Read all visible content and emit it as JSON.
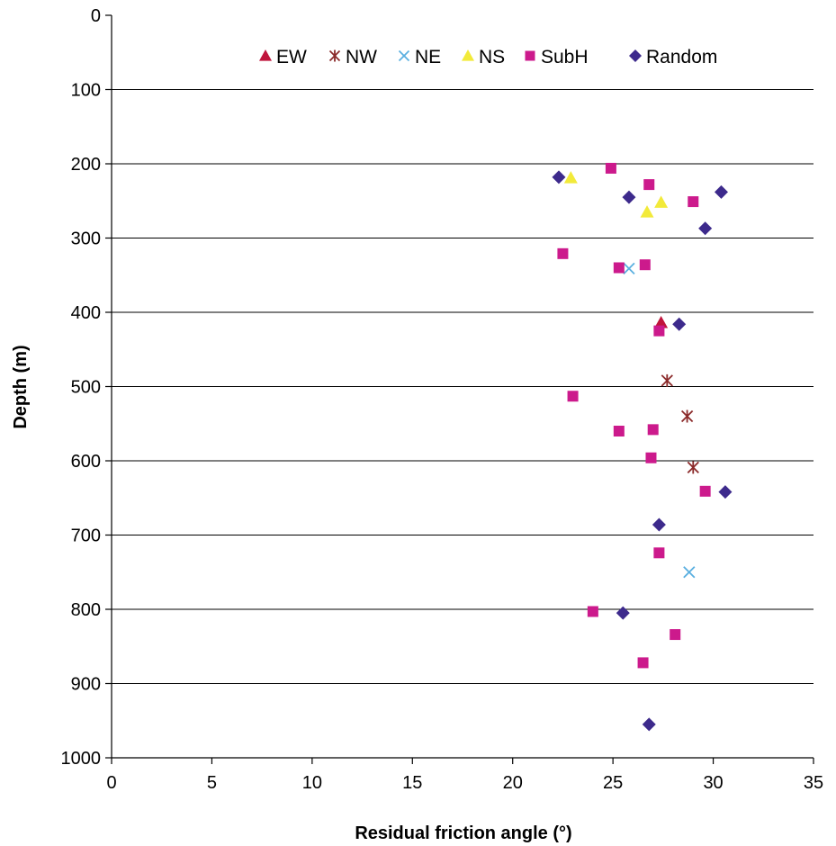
{
  "chart_data": {
    "type": "scatter",
    "title": "",
    "xlabel": "Residual friction angle (°)",
    "ylabel": "Depth (m)",
    "xlim": [
      0,
      35
    ],
    "ylim": [
      0,
      1000
    ],
    "y_inverted": true,
    "x_ticks": [
      0,
      5,
      10,
      15,
      20,
      25,
      30,
      35
    ],
    "y_ticks": [
      0,
      100,
      200,
      300,
      400,
      500,
      600,
      700,
      800,
      900,
      1000
    ],
    "grid": "horizontal",
    "legend_position": "top",
    "series": [
      {
        "name": "EW",
        "marker": "triangle",
        "color": "#C0143C",
        "points": [
          [
            27.4,
            414
          ]
        ]
      },
      {
        "name": "NW",
        "marker": "asterisk",
        "color": "#8B2A2A",
        "points": [
          [
            27.7,
            492
          ],
          [
            28.7,
            540
          ],
          [
            29.0,
            609
          ]
        ]
      },
      {
        "name": "NE",
        "marker": "x",
        "color": "#5AAFE0",
        "points": [
          [
            25.8,
            341
          ],
          [
            28.8,
            750
          ]
        ]
      },
      {
        "name": "NS",
        "marker": "triangle",
        "color": "#F2EA3A",
        "points": [
          [
            22.9,
            219
          ],
          [
            27.4,
            252
          ],
          [
            26.7,
            265
          ]
        ]
      },
      {
        "name": "SubH",
        "marker": "square",
        "color": "#CC1A8C",
        "points": [
          [
            24.9,
            206
          ],
          [
            26.8,
            228
          ],
          [
            29.0,
            251
          ],
          [
            22.5,
            321
          ],
          [
            25.3,
            340
          ],
          [
            26.6,
            336
          ],
          [
            27.3,
            425
          ],
          [
            23.0,
            513
          ],
          [
            25.3,
            560
          ],
          [
            27.0,
            558
          ],
          [
            26.9,
            596
          ],
          [
            29.6,
            641
          ],
          [
            27.3,
            724
          ],
          [
            24.0,
            803
          ],
          [
            28.1,
            834
          ],
          [
            26.5,
            872
          ]
        ]
      },
      {
        "name": "Random",
        "marker": "diamond",
        "color": "#3D2A8C",
        "points": [
          [
            22.3,
            218
          ],
          [
            25.8,
            245
          ],
          [
            30.4,
            238
          ],
          [
            29.6,
            287
          ],
          [
            28.3,
            416
          ],
          [
            30.6,
            642
          ],
          [
            27.3,
            686
          ],
          [
            25.5,
            805
          ],
          [
            26.8,
            955
          ]
        ]
      }
    ]
  }
}
